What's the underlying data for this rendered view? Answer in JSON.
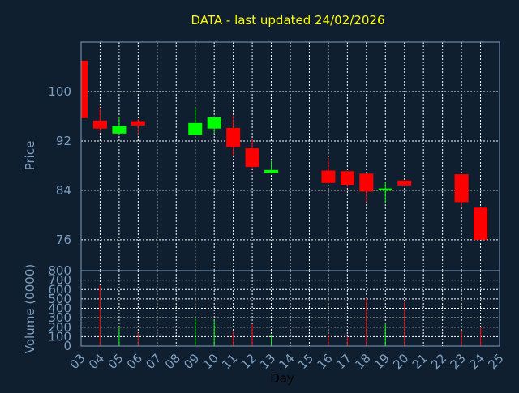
{
  "chart_data": {
    "type": "candlestick",
    "title": "DATA - last updated 24/02/2026",
    "xlabel": "Day",
    "ylabel_price": "Price",
    "ylabel_volume": "Volume (0000)",
    "x_ticks": [
      "03",
      "04",
      "05",
      "06",
      "07",
      "08",
      "09",
      "10",
      "11",
      "12",
      "13",
      "14",
      "15",
      "16",
      "17",
      "18",
      "19",
      "20",
      "21",
      "22",
      "23",
      "24",
      "25"
    ],
    "price_ticks": [
      76,
      84,
      92,
      100
    ],
    "price_ylim": [
      71,
      108
    ],
    "volume_ticks": [
      0,
      100,
      200,
      300,
      400,
      500,
      600,
      700,
      800
    ],
    "volume_ylim": [
      0,
      800
    ],
    "grid": true,
    "colors": {
      "up": "#00ff00",
      "down": "#ff0000",
      "background": "#0f1f30",
      "plot_background": "#0f1f30",
      "frame": "#7f9fbf",
      "title": "#ffff00",
      "ticks": "#7f9fbf"
    },
    "candles": [
      {
        "day": "03",
        "open": 105,
        "high": 105,
        "low": 95.7,
        "close": 95.7,
        "volume": 0
      },
      {
        "day": "04",
        "open": 95.3,
        "high": 97.4,
        "low": 93.5,
        "close": 94.0,
        "volume": 640
      },
      {
        "day": "05",
        "open": 93.2,
        "high": 95.8,
        "low": 93.0,
        "close": 94.4,
        "volume": 200
      },
      {
        "day": "06",
        "open": 95.2,
        "high": 95.5,
        "low": 93.0,
        "close": 94.5,
        "volume": 140
      },
      {
        "day": "09",
        "open": 93.0,
        "high": 97.5,
        "low": 93.0,
        "close": 94.9,
        "volume": 290
      },
      {
        "day": "10",
        "open": 94.0,
        "high": 96.0,
        "low": 93.2,
        "close": 95.8,
        "volume": 280
      },
      {
        "day": "11",
        "open": 94.1,
        "high": 96.1,
        "low": 89.6,
        "close": 91.0,
        "volume": 150
      },
      {
        "day": "12",
        "open": 90.8,
        "high": 92.3,
        "low": 87.4,
        "close": 87.8,
        "volume": 230
      },
      {
        "day": "13",
        "open": 86.8,
        "high": 88.8,
        "low": 86.7,
        "close": 87.3,
        "volume": 120
      },
      {
        "day": "16",
        "open": 87.2,
        "high": 89.2,
        "low": 85.1,
        "close": 85.2,
        "volume": 120
      },
      {
        "day": "17",
        "open": 87.1,
        "high": 87.1,
        "low": 84.5,
        "close": 84.9,
        "volume": 100
      },
      {
        "day": "18",
        "open": 86.7,
        "high": 86.9,
        "low": 82.1,
        "close": 83.8,
        "volume": 510
      },
      {
        "day": "19",
        "open": 84.0,
        "high": 85.4,
        "low": 82.0,
        "close": 84.3,
        "volume": 240
      },
      {
        "day": "20",
        "open": 85.6,
        "high": 85.6,
        "low": 84.6,
        "close": 84.8,
        "volume": 470
      },
      {
        "day": "23",
        "open": 86.6,
        "high": 86.6,
        "low": 81.4,
        "close": 82.1,
        "volume": 160
      },
      {
        "day": "24",
        "open": 81.2,
        "high": 81.2,
        "low": 76.0,
        "close": 76.0,
        "volume": 200
      }
    ]
  }
}
